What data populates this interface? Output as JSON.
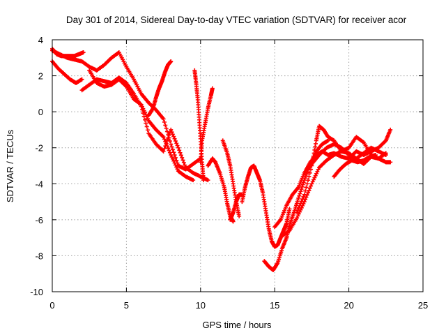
{
  "chart_data": {
    "type": "scatter",
    "title": "Day 301 of 2014, Sidereal Day-to-day VTEC variation (SDTVAR) for receiver acor",
    "xlabel": "GPS time / hours",
    "ylabel": "SDTVAR / TECUs",
    "xlim": [
      0,
      25
    ],
    "ylim": [
      -10,
      4
    ],
    "xticks": [
      0,
      5,
      10,
      15,
      20,
      25
    ],
    "yticks": [
      -10,
      -8,
      -6,
      -4,
      -2,
      0,
      2,
      4
    ],
    "grid": true,
    "marker": "+",
    "color": "#ff0000",
    "series": [
      {
        "x": [
          0.0,
          0.5,
          1.0,
          1.5,
          2.0,
          2.5,
          3.0,
          3.5,
          4.0,
          4.5,
          5.0,
          5.5,
          6.0,
          6.5,
          7.0,
          7.5,
          8.0,
          8.5,
          9.0,
          9.5,
          10.0
        ],
        "y": [
          3.4,
          3.2,
          3.0,
          2.9,
          2.8,
          2.5,
          2.3,
          2.6,
          3.0,
          3.3,
          2.5,
          1.8,
          1.0,
          0.5,
          0.1,
          -0.4,
          -1.8,
          -3.0,
          -3.2,
          -2.9,
          -2.6
        ]
      },
      {
        "x": [
          0.0,
          0.3,
          0.6,
          0.9,
          1.2,
          1.5,
          1.8,
          2.1
        ],
        "y": [
          3.5,
          3.2,
          3.1,
          3.1,
          3.1,
          3.1,
          3.2,
          3.3
        ]
      },
      {
        "x": [
          0.0,
          0.4,
          0.8,
          1.2,
          1.6,
          2.0
        ],
        "y": [
          2.8,
          2.4,
          2.1,
          1.8,
          1.6,
          1.8
        ]
      },
      {
        "x": [
          2.0,
          2.5,
          3.0,
          3.5,
          4.0,
          4.5,
          5.0,
          5.5,
          6.0,
          6.5,
          7.0,
          7.5,
          8.0,
          8.5,
          9.0,
          9.5,
          10.0,
          10.5
        ],
        "y": [
          1.2,
          1.5,
          1.8,
          1.7,
          1.6,
          1.9,
          1.6,
          1.0,
          0.3,
          -1.2,
          -1.8,
          -2.2,
          -1.0,
          -2.0,
          -3.1,
          -3.4,
          -3.6,
          -3.8
        ]
      },
      {
        "x": [
          2.5,
          3.0,
          3.5,
          4.0,
          4.5,
          5.0,
          5.5,
          6.0,
          6.5,
          7.0,
          7.5,
          8.0,
          8.5,
          9.0,
          9.5
        ],
        "y": [
          2.3,
          1.6,
          1.4,
          1.5,
          1.8,
          1.4,
          0.7,
          0.4,
          -0.5,
          -1.0,
          -1.4,
          -2.4,
          -3.3,
          -3.6,
          -3.8
        ]
      },
      {
        "x": [
          6.5,
          6.8,
          7.0,
          7.2,
          7.4,
          7.6,
          7.8,
          8.0
        ],
        "y": [
          -0.2,
          0.2,
          0.8,
          1.3,
          1.7,
          2.2,
          2.6,
          2.8
        ]
      },
      {
        "x": [
          9.6,
          9.7,
          9.8,
          9.9,
          10.0,
          10.1,
          10.2
        ],
        "y": [
          2.3,
          1.6,
          0.8,
          -0.3,
          -1.5,
          -2.8,
          -3.8
        ]
      },
      {
        "x": [
          10.0,
          10.1,
          10.3,
          10.5,
          10.7,
          10.8
        ],
        "y": [
          -2.8,
          -1.6,
          -0.7,
          0.2,
          0.9,
          1.3
        ]
      },
      {
        "x": [
          10.5,
          10.8,
          11.0,
          11.3,
          11.6,
          11.8,
          12.0,
          12.2
        ],
        "y": [
          -3.0,
          -2.6,
          -2.8,
          -3.4,
          -4.2,
          -5.1,
          -5.8,
          -6.1
        ]
      },
      {
        "x": [
          11.5,
          11.8,
          12.0,
          12.2,
          12.4,
          12.6
        ],
        "y": [
          -1.6,
          -2.3,
          -3.0,
          -4.0,
          -5.0,
          -5.8
        ]
      },
      {
        "x": [
          12.8,
          13.0,
          13.2,
          13.4,
          13.6,
          13.8,
          14.0,
          14.2,
          14.4,
          14.6,
          14.8,
          15.0,
          15.2,
          15.4,
          15.6,
          15.8,
          16.0
        ],
        "y": [
          -5.0,
          -4.2,
          -3.6,
          -3.1,
          -3.0,
          -3.4,
          -3.8,
          -4.5,
          -5.5,
          -6.5,
          -7.2,
          -7.5,
          -7.4,
          -7.0,
          -6.6,
          -6.2,
          -5.4
        ]
      },
      {
        "x": [
          14.3,
          14.6,
          14.9,
          15.2,
          15.5,
          15.8,
          16.0,
          16.3,
          16.6,
          17.0,
          17.4,
          17.8,
          18.2,
          18.6
        ],
        "y": [
          -8.3,
          -8.6,
          -8.8,
          -8.4,
          -7.6,
          -7.0,
          -6.3,
          -5.6,
          -4.8,
          -3.8,
          -2.9,
          -2.2,
          -1.8,
          -1.6
        ]
      },
      {
        "x": [
          15.0,
          15.4,
          15.8,
          16.2,
          16.6,
          17.0,
          17.4,
          17.8,
          18.2,
          18.6,
          19.0,
          19.5,
          20.0,
          20.5,
          21.0,
          21.5,
          22.0,
          22.5,
          22.8
        ],
        "y": [
          -6.4,
          -6.0,
          -5.2,
          -4.6,
          -4.2,
          -3.4,
          -2.8,
          -2.4,
          -2.2,
          -2.4,
          -2.3,
          -2.5,
          -2.6,
          -2.2,
          -2.4,
          -2.2,
          -2.0,
          -1.6,
          -1.0
        ]
      },
      {
        "x": [
          15.5,
          16.0,
          16.5,
          17.0,
          17.5,
          18.0,
          18.5,
          19.0,
          19.5,
          20.0,
          20.5,
          21.0,
          21.5,
          22.0,
          22.5,
          22.8
        ],
        "y": [
          -6.9,
          -6.6,
          -5.9,
          -5.0,
          -4.0,
          -3.1,
          -2.7,
          -2.4,
          -2.2,
          -2.3,
          -2.6,
          -2.9,
          -2.5,
          -2.6,
          -2.8,
          -2.8
        ]
      },
      {
        "x": [
          16.5,
          17.0,
          17.5,
          17.8,
          18.0,
          18.3,
          18.6,
          19.0,
          19.5,
          20.0,
          20.5,
          21.0,
          21.5,
          22.0,
          22.5
        ],
        "y": [
          -5.6,
          -4.6,
          -3.0,
          -1.6,
          -0.8,
          -1.0,
          -1.4,
          -1.6,
          -2.2,
          -2.0,
          -1.4,
          -1.7,
          -2.4,
          -2.6,
          -2.3
        ]
      },
      {
        "x": [
          17.2,
          17.6,
          18.0,
          18.5,
          19.0,
          19.5,
          20.0,
          20.5,
          21.0,
          21.5,
          22.0,
          22.5
        ],
        "y": [
          -3.2,
          -2.8,
          -2.4,
          -2.0,
          -1.8,
          -2.0,
          -2.4,
          -2.6,
          -2.3,
          -2.0,
          -2.2,
          -2.4
        ]
      },
      {
        "x": [
          19.0,
          19.4,
          19.8,
          20.2,
          20.6,
          21.0,
          21.4,
          21.8
        ],
        "y": [
          -3.6,
          -3.2,
          -2.9,
          -2.7,
          -2.8,
          -2.7,
          -2.5,
          -2.4
        ]
      },
      {
        "x": [
          12.0,
          12.2,
          12.4,
          12.6,
          12.8
        ],
        "y": [
          -6.0,
          -5.6,
          -5.0,
          -4.6,
          -4.6
        ]
      }
    ]
  }
}
